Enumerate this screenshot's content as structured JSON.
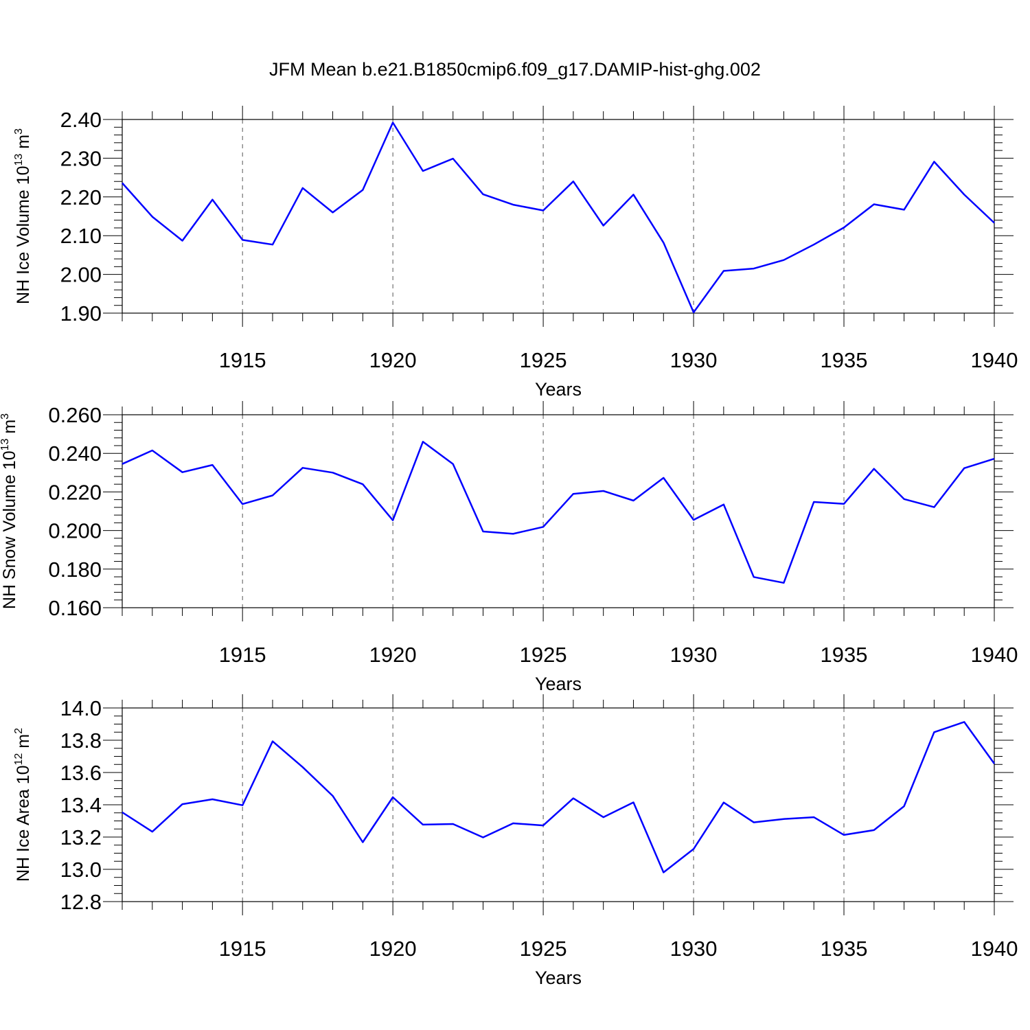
{
  "figure": {
    "title": "JFM Mean b.e21.B1850cmip6.f09_g17.DAMIP-hist-ghg.002"
  },
  "colors": {
    "series": "#0000ff",
    "axis": "#000000",
    "grid": "#555555",
    "background": "#ffffff"
  },
  "chart_data": [
    {
      "type": "line",
      "name": "ice-volume",
      "ylabel_main": "NH Ice Volume 10",
      "ylabel_exp": "13",
      "ylabel_unit": " m",
      "ylabel_unit_exp": "3",
      "xlabel": "Years",
      "xlim": [
        1911,
        1940
      ],
      "ylim": [
        1.9,
        2.4
      ],
      "yticks": [
        1.9,
        2.0,
        2.1,
        2.2,
        2.3,
        2.4
      ],
      "ytick_labels": [
        "1.90",
        "2.00",
        "2.10",
        "2.20",
        "2.30",
        "2.40"
      ],
      "ytick_minor_step": 0.02,
      "xticks": [
        1915,
        1920,
        1925,
        1930,
        1935,
        1940
      ],
      "xtick_labels": [
        "1915",
        "1920",
        "1925",
        "1930",
        "1935",
        "1940"
      ],
      "xgrid_dashed": [
        1915,
        1920,
        1925,
        1930,
        1935
      ],
      "series": [
        {
          "name": "NH Ice Volume",
          "x": [
            1911,
            1912,
            1913,
            1914,
            1915,
            1916,
            1917,
            1918,
            1919,
            1920,
            1921,
            1922,
            1923,
            1924,
            1925,
            1926,
            1927,
            1928,
            1929,
            1930,
            1931,
            1932,
            1933,
            1934,
            1935,
            1936,
            1937,
            1938,
            1939,
            1940
          ],
          "values": [
            2.236,
            2.149,
            2.087,
            2.193,
            2.089,
            2.077,
            2.223,
            2.16,
            2.218,
            2.392,
            2.267,
            2.299,
            2.207,
            2.18,
            2.165,
            2.24,
            2.126,
            2.206,
            2.082,
            1.902,
            2.009,
            2.015,
            2.037,
            2.077,
            2.121,
            2.181,
            2.167,
            2.291,
            2.206,
            2.133
          ]
        }
      ]
    },
    {
      "type": "line",
      "name": "snow-volume",
      "ylabel_main": "NH Snow Volume 10",
      "ylabel_exp": "13",
      "ylabel_unit": " m",
      "ylabel_unit_exp": "3",
      "xlabel": "Years",
      "xlim": [
        1911,
        1940
      ],
      "ylim": [
        0.16,
        0.26
      ],
      "yticks": [
        0.16,
        0.18,
        0.2,
        0.22,
        0.24,
        0.26
      ],
      "ytick_labels": [
        "0.160",
        "0.180",
        "0.200",
        "0.220",
        "0.240",
        "0.260"
      ],
      "ytick_minor_step": 0.004,
      "xticks": [
        1915,
        1920,
        1925,
        1930,
        1935,
        1940
      ],
      "xtick_labels": [
        "1915",
        "1920",
        "1925",
        "1930",
        "1935",
        "1940"
      ],
      "xgrid_dashed": [
        1915,
        1920,
        1925,
        1930,
        1935
      ],
      "series": [
        {
          "name": "NH Snow Volume",
          "x": [
            1911,
            1912,
            1913,
            1914,
            1915,
            1916,
            1917,
            1918,
            1919,
            1920,
            1921,
            1922,
            1923,
            1924,
            1925,
            1926,
            1927,
            1928,
            1929,
            1930,
            1931,
            1932,
            1933,
            1934,
            1935,
            1936,
            1937,
            1938,
            1939,
            1940
          ],
          "values": [
            0.2345,
            0.2415,
            0.2302,
            0.234,
            0.2137,
            0.2182,
            0.2325,
            0.23,
            0.224,
            0.2053,
            0.246,
            0.2345,
            0.1995,
            0.1983,
            0.2019,
            0.219,
            0.2205,
            0.2155,
            0.2273,
            0.2055,
            0.2135,
            0.1759,
            0.1729,
            0.2148,
            0.2138,
            0.232,
            0.2163,
            0.2121,
            0.2323,
            0.2372
          ]
        }
      ]
    },
    {
      "type": "line",
      "name": "ice-area",
      "ylabel_main": "NH Ice Area 10",
      "ylabel_exp": "12",
      "ylabel_unit": " m",
      "ylabel_unit_exp": "2",
      "xlabel": "Years",
      "xlim": [
        1911,
        1940
      ],
      "ylim": [
        12.8,
        14.0
      ],
      "yticks": [
        12.8,
        13.0,
        13.2,
        13.4,
        13.6,
        13.8,
        14.0
      ],
      "ytick_labels": [
        "12.8",
        "13.0",
        "13.2",
        "13.4",
        "13.6",
        "13.8",
        "14.0"
      ],
      "ytick_minor_step": 0.05,
      "xticks": [
        1915,
        1920,
        1925,
        1930,
        1935,
        1940
      ],
      "xtick_labels": [
        "1915",
        "1920",
        "1925",
        "1930",
        "1935",
        "1940"
      ],
      "xgrid_dashed": [
        1915,
        1920,
        1925,
        1930,
        1935
      ],
      "series": [
        {
          "name": "NH Ice Area",
          "x": [
            1911,
            1912,
            1913,
            1914,
            1915,
            1916,
            1917,
            1918,
            1919,
            1920,
            1921,
            1922,
            1923,
            1924,
            1925,
            1926,
            1927,
            1928,
            1929,
            1930,
            1931,
            1932,
            1933,
            1934,
            1935,
            1936,
            1937,
            1938,
            1939,
            1940
          ],
          "values": [
            13.353,
            13.233,
            13.404,
            13.434,
            13.397,
            13.793,
            13.633,
            13.455,
            13.168,
            13.447,
            13.277,
            13.281,
            13.198,
            13.285,
            13.272,
            13.44,
            13.323,
            13.415,
            12.981,
            13.126,
            13.414,
            13.291,
            13.312,
            13.323,
            13.213,
            13.243,
            13.391,
            13.85,
            13.913,
            13.655
          ]
        }
      ]
    }
  ]
}
